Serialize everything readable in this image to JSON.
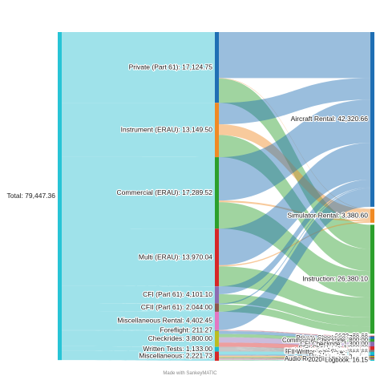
{
  "chart_data": {
    "type": "sankey",
    "title": "",
    "credit": "Made with SankeyMATIC",
    "nodes": [
      {
        "id": "total",
        "label": "Total: 79,447.36",
        "color": "#27c4d6",
        "column": 0
      },
      {
        "id": "private",
        "label": "Private (Part 61): 17,124.75",
        "color": "#1f6fb4",
        "column": 1
      },
      {
        "id": "instrument",
        "label": "Instrument (ERAU): 13,149.50",
        "color": "#f08a24",
        "column": 1
      },
      {
        "id": "commercial",
        "label": "Commercial (ERAU): 17,289.52",
        "color": "#2ca02c",
        "column": 1
      },
      {
        "id": "multi",
        "label": "Multi (ERAU): 13,970.04",
        "color": "#d62728",
        "column": 1
      },
      {
        "id": "cfi",
        "label": "CFI (Part 61): 4,101.10",
        "color": "#8c6bb1",
        "column": 1
      },
      {
        "id": "cfii",
        "label": "CFII (Part 61): 2,044.00",
        "color": "#8c564b",
        "column": 1
      },
      {
        "id": "miscrental",
        "label": "Miscellaneous Rental: 4,402.45",
        "color": "#e377c2",
        "column": 1
      },
      {
        "id": "foreflight",
        "label": "Foreflight: 211.27",
        "color": "#7f7f7f",
        "column": 1
      },
      {
        "id": "checkrides",
        "label": "Checkrides: 3,800.00",
        "color": "#bcbd22",
        "column": 1
      },
      {
        "id": "written",
        "label": "Written Tests: 1,133.00",
        "color": "#17becf",
        "column": 1
      },
      {
        "id": "misc",
        "label": "Miscellaneous: 2,221.73",
        "color": "#d62728",
        "column": 1
      },
      {
        "id": "aircraft",
        "label": "Aircraft Rental: 42,320.66",
        "color": "#1f6fb4",
        "column": 2
      },
      {
        "id": "simulator",
        "label": "Simulator Rental: 3,380.60",
        "color": "#f08a24",
        "column": 2
      },
      {
        "id": "instruction",
        "label": "Instruction: 26,380.10",
        "color": "#2ca02c",
        "column": 2
      },
      {
        "id": "y2020",
        "label": "2020: 66.67",
        "color": "#d62728",
        "column": 2
      },
      {
        "id": "y2021",
        "label": "2021: 65.68",
        "color": "#8c6bb1",
        "column": 2
      },
      {
        "id": "y2022",
        "label": "2022: 78.92",
        "color": "#8c564b",
        "column": 2
      },
      {
        "id": "pvtck",
        "label": "Private Checkride: 700.00",
        "color": "#1f6fb4",
        "column": 2
      },
      {
        "id": "comck",
        "label": "Commercial Checkride: 800.00",
        "color": "#2ca02c",
        "column": 2
      },
      {
        "id": "cfick",
        "label": "CFI Checkride: 1,300.00",
        "color": "#8c6bb1",
        "column": 2
      },
      {
        "id": "cfiick",
        "label": "CFII Checkride: 1,000.00",
        "color": "#d62728",
        "column": 2
      },
      {
        "id": "pvtwr",
        "label": "Private Written: 160.00",
        "color": "#7f7f7f",
        "column": 2
      },
      {
        "id": "inswr",
        "label": "Instrument Written: 160.00",
        "color": "#7f7f7f",
        "column": 2
      },
      {
        "id": "comwr",
        "label": "Commercial Written: 173.00",
        "color": "#7f7f7f",
        "column": 2
      },
      {
        "id": "foiwr",
        "label": "FOI Written with Shep: 210.00",
        "color": "#7f7f7f",
        "column": 2
      },
      {
        "id": "fiawr",
        "label": "FIA Written with Shep: 220.00",
        "color": "#7f7f7f",
        "column": 2
      },
      {
        "id": "fiiwr",
        "label": "FII Written with Shep: 210.00",
        "color": "#7f7f7f",
        "column": 2
      },
      {
        "id": "lsz3",
        "label": "LSZ3 (Gift): 899.00",
        "color": "#17becf",
        "column": 2
      },
      {
        "id": "dch10",
        "label": "DC H10-13.4: 362.49",
        "color": "#1f6fb4",
        "column": 2
      },
      {
        "id": "ipadmini4",
        "label": "iPad Mini 4: 417.76",
        "color": "#f08a24",
        "column": 2
      },
      {
        "id": "ipadmini5",
        "label": "iPad Mini 5: 325.63",
        "color": "#2ca02c",
        "column": 2
      },
      {
        "id": "ipadcases",
        "label": "iPad Cases: 25.00",
        "color": "#d62728",
        "column": 2
      },
      {
        "id": "ipadmount",
        "label": "iPad Mount: 51.71",
        "color": "#8c6bb1",
        "column": 2
      },
      {
        "id": "audio",
        "label": "Audio Recording Cable: 58.17",
        "color": "#8c564b",
        "column": 2
      },
      {
        "id": "e6b",
        "label": "E6B: 31.24",
        "color": "#e377c2",
        "column": 2
      },
      {
        "id": "plotter",
        "label": "Plotter: 17.67",
        "color": "#7f7f7f",
        "column": 2
      },
      {
        "id": "farm",
        "label": "2020 FAR/AIM: 16.91",
        "color": "#bcbd22",
        "column": 2
      },
      {
        "id": "logbook",
        "label": "Logbook: 16.15",
        "color": "#17becf",
        "column": 2
      }
    ],
    "links": [
      {
        "source": "total",
        "target": "private",
        "value": 17124.75
      },
      {
        "source": "total",
        "target": "instrument",
        "value": 13149.5
      },
      {
        "source": "total",
        "target": "commercial",
        "value": 17289.52
      },
      {
        "source": "total",
        "target": "multi",
        "value": 13970.04
      },
      {
        "source": "total",
        "target": "cfi",
        "value": 4101.1
      },
      {
        "source": "total",
        "target": "cfii",
        "value": 2044.0
      },
      {
        "source": "total",
        "target": "miscrental",
        "value": 4402.45
      },
      {
        "source": "total",
        "target": "foreflight",
        "value": 211.27
      },
      {
        "source": "total",
        "target": "checkrides",
        "value": 3800.0
      },
      {
        "source": "total",
        "target": "written",
        "value": 1133.0
      },
      {
        "source": "total",
        "target": "misc",
        "value": 2221.73
      },
      {
        "source": "private",
        "target": "aircraft",
        "value": 11150.0
      },
      {
        "source": "private",
        "target": "simulator",
        "value": 100.0
      },
      {
        "source": "private",
        "target": "instruction",
        "value": 5874.75
      },
      {
        "source": "instrument",
        "target": "aircraft",
        "value": 5200.0
      },
      {
        "source": "instrument",
        "target": "simulator",
        "value": 2600.0
      },
      {
        "source": "instrument",
        "target": "instruction",
        "value": 5349.5
      },
      {
        "source": "commercial",
        "target": "aircraft",
        "value": 10500.0
      },
      {
        "source": "commercial",
        "target": "simulator",
        "value": 400.0
      },
      {
        "source": "commercial",
        "target": "instruction",
        "value": 6389.52
      },
      {
        "source": "multi",
        "target": "aircraft",
        "value": 8870.0
      },
      {
        "source": "multi",
        "target": "simulator",
        "value": 280.6
      },
      {
        "source": "multi",
        "target": "instruction",
        "value": 4819.44
      },
      {
        "source": "cfi",
        "target": "aircraft",
        "value": 1900.0
      },
      {
        "source": "cfi",
        "target": "instruction",
        "value": 2201.1
      },
      {
        "source": "cfii",
        "target": "aircraft",
        "value": 298.21
      },
      {
        "source": "cfii",
        "target": "instruction",
        "value": 1745.79
      },
      {
        "source": "miscrental",
        "target": "aircraft",
        "value": 4402.45
      },
      {
        "source": "foreflight",
        "target": "y2020",
        "value": 66.67
      },
      {
        "source": "foreflight",
        "target": "y2021",
        "value": 65.68
      },
      {
        "source": "foreflight",
        "target": "y2022",
        "value": 78.92
      },
      {
        "source": "checkrides",
        "target": "pvtck",
        "value": 700.0
      },
      {
        "source": "checkrides",
        "target": "comck",
        "value": 800.0
      },
      {
        "source": "checkrides",
        "target": "cfick",
        "value": 1300.0
      },
      {
        "source": "checkrides",
        "target": "cfiick",
        "value": 1000.0
      },
      {
        "source": "written",
        "target": "pvtwr",
        "value": 160.0
      },
      {
        "source": "written",
        "target": "inswr",
        "value": 160.0
      },
      {
        "source": "written",
        "target": "comwr",
        "value": 173.0
      },
      {
        "source": "written",
        "target": "foiwr",
        "value": 210.0
      },
      {
        "source": "written",
        "target": "fiawr",
        "value": 220.0
      },
      {
        "source": "written",
        "target": "fiiwr",
        "value": 210.0
      },
      {
        "source": "misc",
        "target": "lsz3",
        "value": 899.0
      },
      {
        "source": "misc",
        "target": "dch10",
        "value": 362.49
      },
      {
        "source": "misc",
        "target": "ipadmini4",
        "value": 417.76
      },
      {
        "source": "misc",
        "target": "ipadmini5",
        "value": 325.63
      },
      {
        "source": "misc",
        "target": "ipadcases",
        "value": 25.0
      },
      {
        "source": "misc",
        "target": "ipadmount",
        "value": 51.71
      },
      {
        "source": "misc",
        "target": "audio",
        "value": 58.17
      },
      {
        "source": "misc",
        "target": "e6b",
        "value": 31.24
      },
      {
        "source": "misc",
        "target": "plotter",
        "value": 17.67
      },
      {
        "source": "misc",
        "target": "farm",
        "value": 16.91
      },
      {
        "source": "misc",
        "target": "logbook",
        "value": 16.15
      }
    ]
  }
}
